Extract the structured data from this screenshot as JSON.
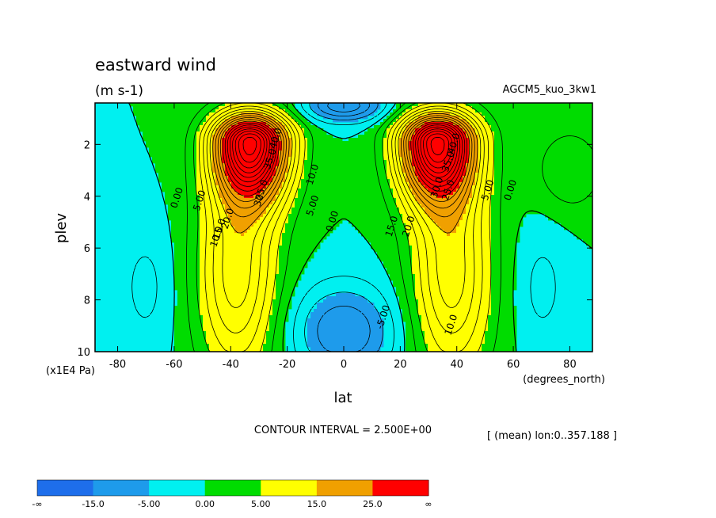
{
  "title": "eastward wind",
  "units": "(m s-1)",
  "model": "AGCM5_kuo_3kw1",
  "chart_data": {
    "type": "contour",
    "title": "eastward wind",
    "units": "(m s-1)",
    "xlabel": "lat",
    "xunit": "(degrees_north)",
    "ylabel": "plev",
    "yunit": "(x1E4 Pa)",
    "xlim": [
      -88,
      88
    ],
    "ylim": [
      0.4,
      10
    ],
    "y_reversed": true,
    "xticks": [
      -80,
      -60,
      -40,
      -20,
      0,
      20,
      40,
      60,
      80
    ],
    "yticks": [
      2,
      4,
      6,
      8,
      10
    ],
    "contour_interval": "CONTOUR INTERVAL = 2.500E+00",
    "averaging_note": "[ (mean) lon:0..357.188 ]",
    "colorbar": {
      "colors": [
        "#1e6eeb",
        "#1e9beb",
        "#00f0f0",
        "#00dc00",
        "#ffff00",
        "#f0a000",
        "#ff0000"
      ],
      "labels": [
        "-∞",
        "-15.0",
        "-5.00",
        "0.00",
        "5.00",
        "15.0",
        "25.0",
        "∞"
      ]
    },
    "jets": [
      {
        "name": "southern subtropical jet",
        "lat": -33,
        "plev": 2.2,
        "max_approx": 40
      },
      {
        "name": "northern subtropical jet",
        "lat": 33,
        "plev": 2.2,
        "max_approx": 40
      }
    ],
    "contour_labels": [
      {
        "text": "0.00",
        "lat": -58,
        "plev": 4.1
      },
      {
        "text": "5.00",
        "lat": -50,
        "plev": 4.2
      },
      {
        "text": "10.0",
        "lat": -44,
        "plev": 5.6
      },
      {
        "text": "15.0",
        "lat": -43,
        "plev": 5.3
      },
      {
        "text": "20.0",
        "lat": -40,
        "plev": 4.9
      },
      {
        "text": "25.0",
        "lat": -28,
        "plev": 3.8
      },
      {
        "text": "30",
        "lat": -29,
        "plev": 4.2
      },
      {
        "text": "35.0",
        "lat": -25,
        "plev": 2.6
      },
      {
        "text": "40.0",
        "lat": -23,
        "plev": 1.8
      },
      {
        "text": "10.0",
        "lat": -10,
        "plev": 3.2
      },
      {
        "text": "5.00",
        "lat": -10,
        "plev": 4.4
      },
      {
        "text": "0.00",
        "lat": -3,
        "plev": 5.0
      },
      {
        "text": "-5.00",
        "lat": 15,
        "plev": 8.7
      },
      {
        "text": "15.0",
        "lat": 18,
        "plev": 5.2
      },
      {
        "text": "20.0",
        "lat": 24,
        "plev": 5.2
      },
      {
        "text": "25.0",
        "lat": 38,
        "plev": 3.8
      },
      {
        "text": "30.0",
        "lat": 34,
        "plev": 3.7
      },
      {
        "text": "35.0",
        "lat": 38,
        "plev": 2.7
      },
      {
        "text": "40.0",
        "lat": 40,
        "plev": 2.0
      },
      {
        "text": "10.0",
        "lat": 39,
        "plev": 9.0
      },
      {
        "text": "5.00",
        "lat": 52,
        "plev": 3.8
      },
      {
        "text": "0.00",
        "lat": 60,
        "plev": 3.8
      }
    ]
  }
}
